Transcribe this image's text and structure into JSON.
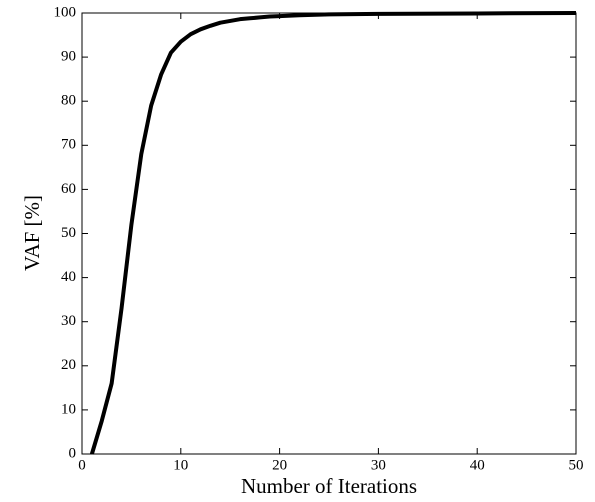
{
  "chart_data": {
    "type": "line",
    "x_label": "Number of Iterations",
    "y_label": "VAF [%]",
    "x": [
      1,
      2,
      3,
      4,
      5,
      6,
      7,
      8,
      9,
      10,
      11,
      12,
      13,
      14,
      15,
      16,
      17,
      18,
      19,
      20,
      22,
      25,
      30,
      40,
      50
    ],
    "series": [
      {
        "color": "#000000",
        "values": [
          0,
          7.5,
          16,
          33,
          52,
          68,
          79,
          86,
          91,
          93.5,
          95.2,
          96.3,
          97.1,
          97.8,
          98.2,
          98.6,
          98.8,
          99,
          99.2,
          99.3,
          99.5,
          99.7,
          99.8,
          99.9,
          100
        ]
      }
    ],
    "xlim": [
      0,
      50
    ],
    "xticks": [
      0,
      10,
      20,
      30,
      40,
      50
    ],
    "ylim": [
      0,
      100
    ],
    "yticks": [
      0,
      10,
      20,
      30,
      40,
      50,
      60,
      70,
      80,
      90,
      100
    ],
    "grid": false
  }
}
